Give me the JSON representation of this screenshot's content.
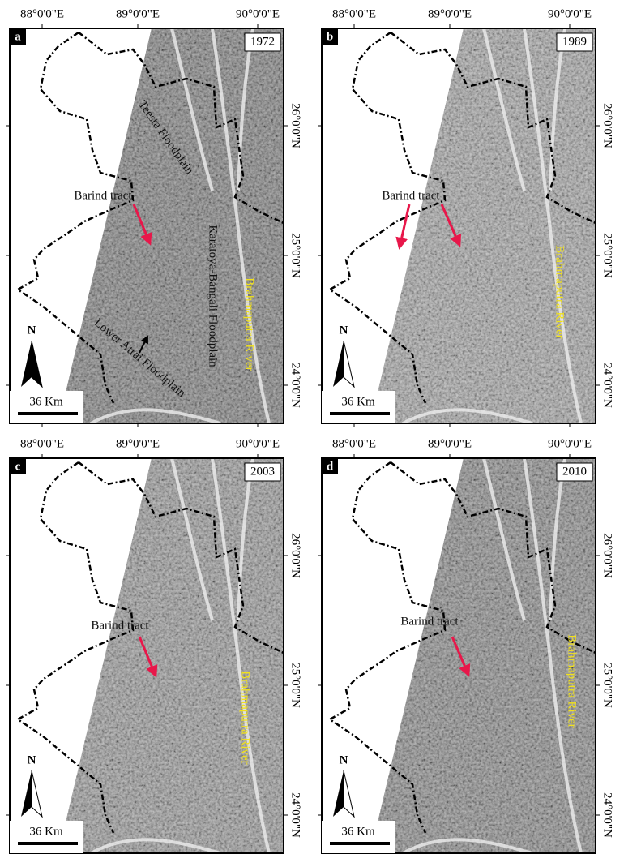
{
  "lon_labels": [
    "88°0'0\"E",
    "89°0'0\"E",
    "90°0'0\"E"
  ],
  "lat_labels": [
    "26°0'0\"N",
    "25°0'0\"N",
    "24°0'0\"N"
  ],
  "north_label": "N",
  "scale_label": "36 Km",
  "panels": [
    {
      "letter": "a",
      "year": "1972",
      "annotations": [
        "Teesta Floodplain",
        "Barind tract",
        "Karatoya-Bangali Floodplain",
        "Lower Atrai Floodplain",
        "Brahmaputra River"
      ]
    },
    {
      "letter": "b",
      "year": "1989",
      "annotations": [
        "Barind tract",
        "Brahmaputra River"
      ]
    },
    {
      "letter": "c",
      "year": "2003",
      "annotations": [
        "Barind tract",
        "Brahmaputra River"
      ]
    },
    {
      "letter": "d",
      "year": "2010",
      "annotations": [
        "Barind tract",
        "Brahmaputra River"
      ]
    }
  ]
}
